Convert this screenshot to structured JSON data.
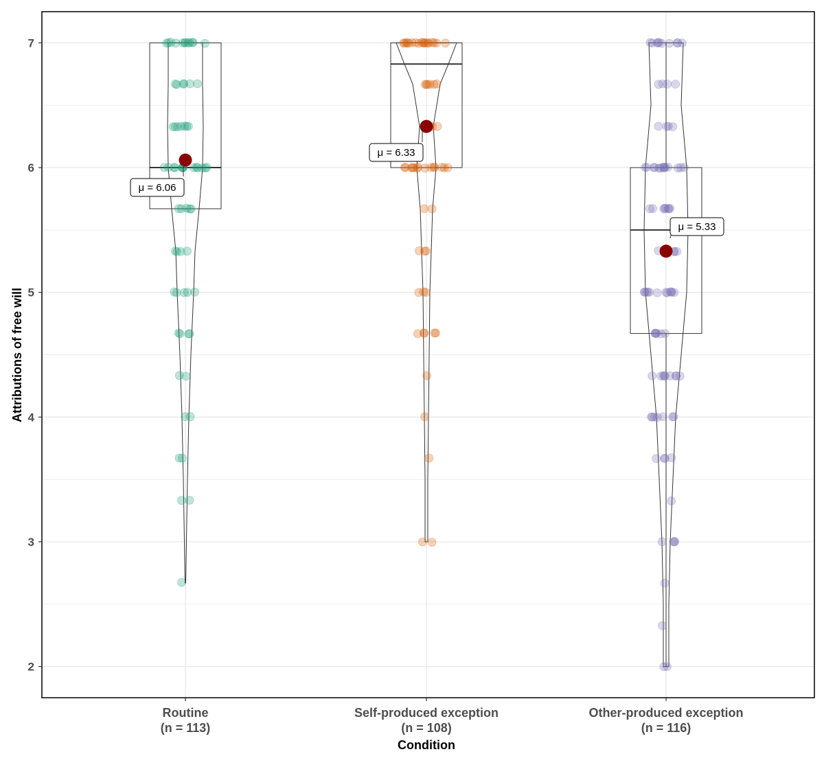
{
  "chart_data": {
    "type": "violin-box-jitter",
    "title": "",
    "xlabel": "Condition",
    "ylabel": "Attributions of free will",
    "ylim": [
      1.75,
      7.25
    ],
    "yticks": [
      "2",
      "3",
      "4",
      "5",
      "6",
      "7"
    ],
    "grid": true,
    "mean_color": "#8b0000",
    "groups": [
      {
        "name": "Routine",
        "n_label": "(n = 113)",
        "color": "#1b9e77",
        "mean": 6.06,
        "mean_label": "μ = 6.06",
        "box": {
          "q1": 5.67,
          "median": 6.0,
          "q3": 7.0,
          "whisker_low": 5.67,
          "whisker_high": 7.0
        },
        "violin": {
          "y": [
            2.67,
            3.0,
            3.5,
            4.0,
            4.5,
            5.0,
            5.33,
            5.67,
            6.0,
            6.33,
            6.67,
            7.0
          ],
          "halfwidth": [
            0.5,
            1.5,
            3,
            5,
            8,
            12,
            14,
            20,
            25,
            26,
            25,
            25
          ]
        },
        "points": [
          {
            "y": 7,
            "c": 12
          },
          {
            "y": 6.67,
            "c": 6
          },
          {
            "y": 6.33,
            "c": 7
          },
          {
            "y": 6,
            "c": 14
          },
          {
            "y": 5.67,
            "c": 5
          },
          {
            "y": 5.33,
            "c": 4
          },
          {
            "y": 5,
            "c": 5
          },
          {
            "y": 4.67,
            "c": 4
          },
          {
            "y": 4.33,
            "c": 2
          },
          {
            "y": 4,
            "c": 2
          },
          {
            "y": 3.67,
            "c": 2
          },
          {
            "y": 3.33,
            "c": 2
          },
          {
            "y": 2.67,
            "c": 1
          }
        ]
      },
      {
        "name": "Self-produced exception",
        "n_label": "(n = 108)",
        "color": "#d95f02",
        "mean": 6.33,
        "mean_label": "μ = 6.33",
        "box": {
          "q1": 6.0,
          "median": 6.83,
          "q3": 7.0,
          "whisker_low": 6.0,
          "whisker_high": 7.0
        },
        "violin": {
          "y": [
            3.0,
            3.5,
            4.0,
            4.5,
            5.0,
            5.33,
            5.67,
            6.0,
            6.33,
            6.67,
            6.83,
            7.0
          ],
          "halfwidth": [
            2,
            2,
            3,
            4,
            5,
            7,
            9,
            14,
            10,
            20,
            32,
            44
          ]
        },
        "points": [
          {
            "y": 7,
            "c": 18
          },
          {
            "y": 6.67,
            "c": 6
          },
          {
            "y": 6.33,
            "c": 5
          },
          {
            "y": 6,
            "c": 14
          },
          {
            "y": 5.67,
            "c": 2
          },
          {
            "y": 5.33,
            "c": 3
          },
          {
            "y": 5,
            "c": 3
          },
          {
            "y": 4.67,
            "c": 5
          },
          {
            "y": 4.33,
            "c": 1
          },
          {
            "y": 4,
            "c": 1
          },
          {
            "y": 3.67,
            "c": 1
          },
          {
            "y": 3,
            "c": 2
          }
        ]
      },
      {
        "name": "Other-produced exception",
        "n_label": "(n = 116)",
        "color": "#7570b3",
        "mean": 5.33,
        "mean_label": "μ = 5.33",
        "box": {
          "q1": 4.67,
          "median": 5.5,
          "q3": 6.0,
          "whisker_low": 2.0,
          "whisker_high": 7.0
        },
        "violin": {
          "y": [
            2.0,
            2.5,
            3.0,
            3.5,
            4.0,
            4.5,
            5.0,
            5.5,
            6.0,
            6.5,
            7.0
          ],
          "halfwidth": [
            4,
            4,
            6,
            10,
            14,
            22,
            30,
            32,
            30,
            22,
            25
          ]
        },
        "points": [
          {
            "y": 7,
            "c": 10
          },
          {
            "y": 6.67,
            "c": 4
          },
          {
            "y": 6.33,
            "c": 4
          },
          {
            "y": 6,
            "c": 14
          },
          {
            "y": 5.67,
            "c": 8
          },
          {
            "y": 5.33,
            "c": 5
          },
          {
            "y": 5,
            "c": 12
          },
          {
            "y": 4.67,
            "c": 6
          },
          {
            "y": 4.33,
            "c": 9
          },
          {
            "y": 4,
            "c": 7
          },
          {
            "y": 3.67,
            "c": 4
          },
          {
            "y": 3.33,
            "c": 1
          },
          {
            "y": 3,
            "c": 4
          },
          {
            "y": 2.67,
            "c": 1
          },
          {
            "y": 2.33,
            "c": 1
          },
          {
            "y": 2,
            "c": 2
          }
        ]
      }
    ]
  }
}
